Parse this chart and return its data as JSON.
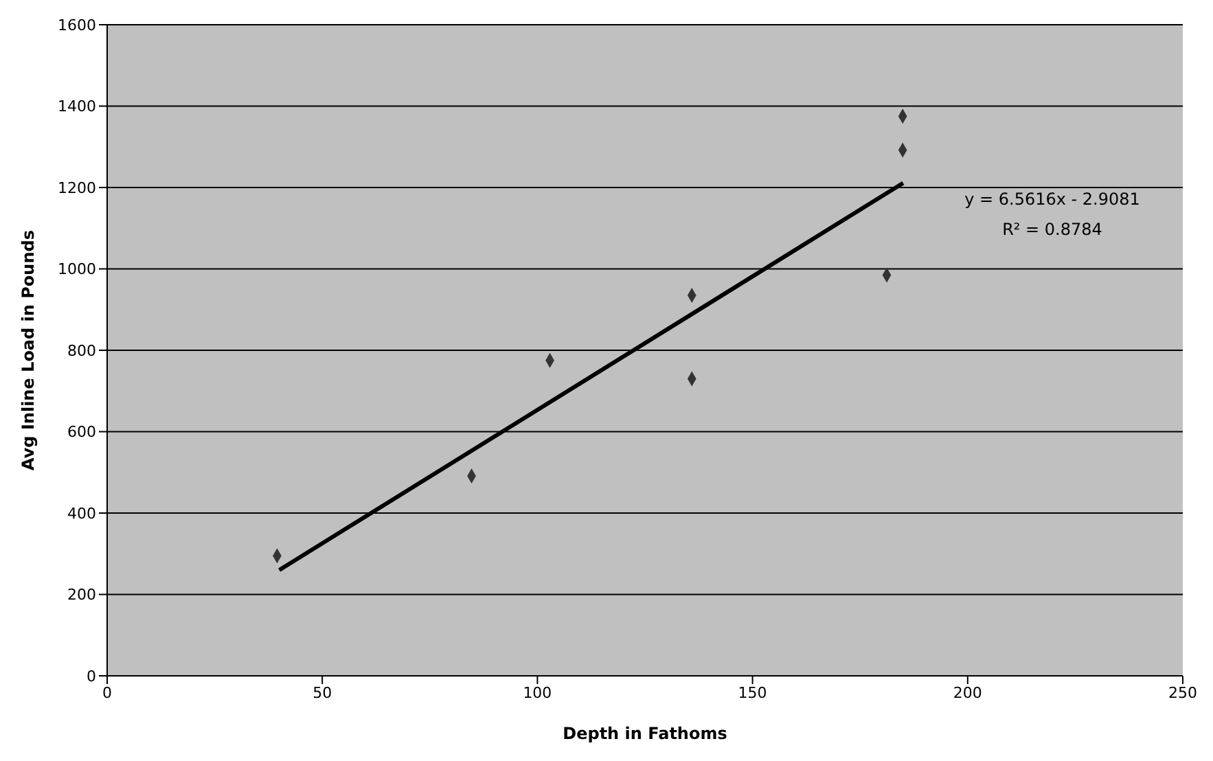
{
  "chart_data": {
    "type": "scatter",
    "xlabel": "Depth in Fathoms",
    "ylabel": "Avg Inline Load in Pounds",
    "xlim": [
      0,
      250
    ],
    "xticks": [
      0,
      50,
      100,
      150,
      200,
      250
    ],
    "ylim": [
      0,
      1600
    ],
    "yticks": [
      0,
      200,
      400,
      600,
      800,
      1000,
      1200,
      1400,
      1600
    ],
    "grid": "y",
    "legend": false,
    "series": [
      {
        "marker": "diamond",
        "color": "#333333",
        "x": [
          39.5,
          84.7,
          102.9,
          135.9,
          135.9,
          181.2,
          184.9,
          184.9
        ],
        "values": [
          295,
          491,
          775,
          935,
          730,
          985,
          1292,
          1375
        ]
      },
      {
        "type": "line",
        "marker": "none",
        "color": "#000000",
        "x": [
          40,
          185
        ],
        "values": [
          260,
          1211
        ]
      }
    ],
    "annotations": [
      "y = 6.5616x - 2.9081",
      "R² = 0.8784"
    ]
  }
}
